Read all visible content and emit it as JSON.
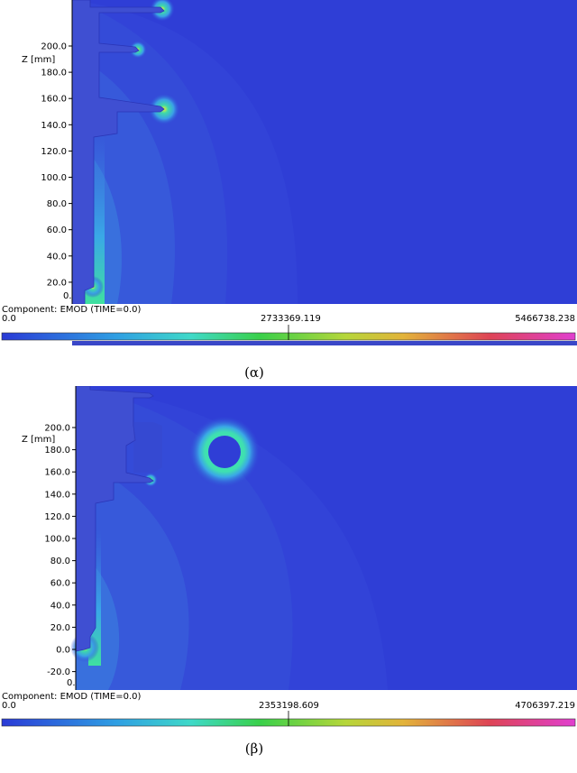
{
  "colors": {
    "field_bg": "#2f3ed6",
    "body_fill": "#3f4fd2",
    "outline": "#2b36b8"
  },
  "icons": [
    "hole-icon",
    "plate-icon"
  ],
  "panels": [
    {
      "caption": "(α)",
      "axis_title": "Z [mm]",
      "ticks": [
        "200.0",
        "180.0",
        "160.0",
        "140.0",
        "120.0",
        "100.0",
        "80.0",
        "60.0",
        "40.0",
        "20.0"
      ],
      "origin_label": "0.",
      "component_label": "Component: EMOD (TIME=0.0)",
      "scale": {
        "min": "0.0",
        "mid": "2733369.119",
        "max": "5466738.238"
      }
    },
    {
      "caption": "(β)",
      "axis_title": "Z [mm]",
      "ticks": [
        "200.0",
        "180.0",
        "160.0",
        "140.0",
        "120.0",
        "100.0",
        "80.0",
        "60.0",
        "40.0",
        "20.0",
        "0.0",
        "-20.0"
      ],
      "origin_label": "0.",
      "component_label": "Component: EMOD (TIME=0.0)",
      "scale": {
        "min": "0.0",
        "mid": "2353198.609",
        "max": "4706397.219"
      }
    }
  ]
}
